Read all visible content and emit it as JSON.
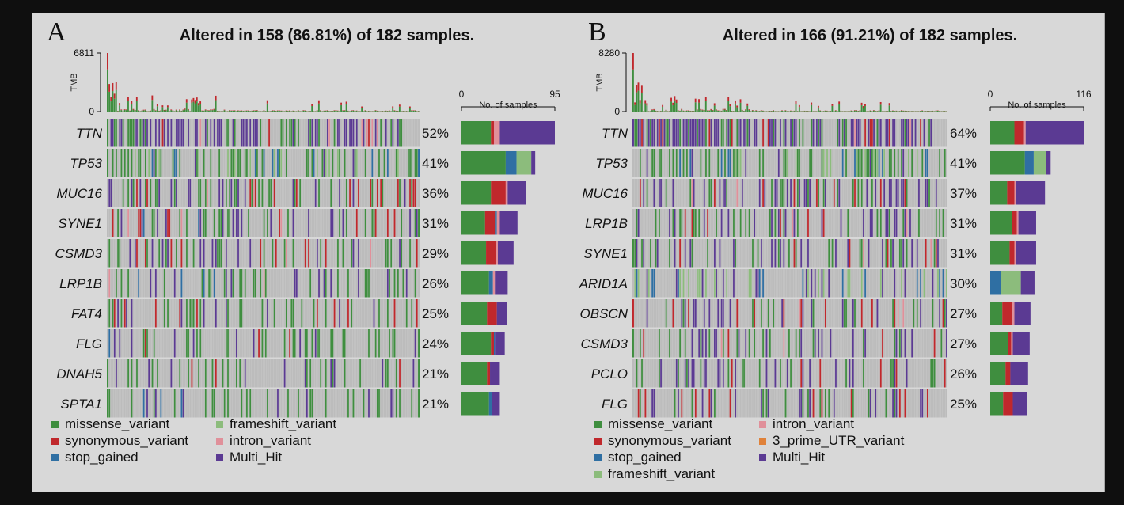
{
  "colors": {
    "missense_variant": "#3f8e3f",
    "synonymous_variant": "#c0282c",
    "stop_gained": "#2f6fa3",
    "frameshift_variant": "#8cbc7c",
    "intron_variant": "#e0909a",
    "3_prime_UTR_variant": "#e0823a",
    "Multi_Hit": "#5b3a93",
    "none": "#bcbcbc"
  },
  "chart_data": [
    {
      "type": "oncoplot",
      "panel": "A",
      "title": "Altered in 158 (86.81%) of 182 samples.",
      "n_samples": 182,
      "tmb": {
        "ylabel": "TMB",
        "max_label": "6811",
        "min_label": "0",
        "max": 6811
      },
      "side_bar": {
        "label": "No. of samples",
        "min_label": "0",
        "max_label": "95",
        "max": 95
      },
      "genes": [
        {
          "name": "TTN",
          "pct": "52%",
          "count": 95,
          "composition": {
            "missense_variant": 30,
            "synonymous_variant": 3,
            "intron_variant": 6,
            "Multi_Hit": 56
          }
        },
        {
          "name": "TP53",
          "pct": "41%",
          "count": 75,
          "composition": {
            "missense_variant": 45,
            "stop_gained": 11,
            "frameshift_variant": 15,
            "Multi_Hit": 4
          }
        },
        {
          "name": "MUC16",
          "pct": "36%",
          "count": 66,
          "composition": {
            "missense_variant": 30,
            "synonymous_variant": 15,
            "intron_variant": 2,
            "Multi_Hit": 19
          }
        },
        {
          "name": "SYNE1",
          "pct": "31%",
          "count": 57,
          "composition": {
            "missense_variant": 24,
            "synonymous_variant": 10,
            "stop_gained": 2,
            "intron_variant": 3,
            "Multi_Hit": 18
          }
        },
        {
          "name": "CSMD3",
          "pct": "29%",
          "count": 53,
          "composition": {
            "missense_variant": 25,
            "synonymous_variant": 10,
            "intron_variant": 2,
            "Multi_Hit": 16
          }
        },
        {
          "name": "LRP1B",
          "pct": "26%",
          "count": 47,
          "composition": {
            "missense_variant": 28,
            "stop_gained": 4,
            "intron_variant": 2,
            "Multi_Hit": 13
          }
        },
        {
          "name": "FAT4",
          "pct": "25%",
          "count": 46,
          "composition": {
            "missense_variant": 26,
            "synonymous_variant": 10,
            "Multi_Hit": 10
          }
        },
        {
          "name": "FLG",
          "pct": "24%",
          "count": 44,
          "composition": {
            "missense_variant": 30,
            "synonymous_variant": 3,
            "stop_gained": 1,
            "Multi_Hit": 10
          }
        },
        {
          "name": "DNAH5",
          "pct": "21%",
          "count": 39,
          "composition": {
            "missense_variant": 26,
            "synonymous_variant": 3,
            "Multi_Hit": 10
          }
        },
        {
          "name": "SPTA1",
          "pct": "21%",
          "count": 39,
          "composition": {
            "missense_variant": 28,
            "stop_gained": 3,
            "Multi_Hit": 8
          }
        }
      ],
      "legend": [
        {
          "key": "missense_variant",
          "label": "missense_variant"
        },
        {
          "key": "synonymous_variant",
          "label": "synonymous_variant"
        },
        {
          "key": "stop_gained",
          "label": "stop_gained"
        },
        {
          "key": "frameshift_variant",
          "label": "frameshift_variant"
        },
        {
          "key": "intron_variant",
          "label": "intron_variant"
        },
        {
          "key": "Multi_Hit",
          "label": "Multi_Hit"
        }
      ]
    },
    {
      "type": "oncoplot",
      "panel": "B",
      "title": "Altered in 166 (91.21%) of 182 samples.",
      "n_samples": 182,
      "tmb": {
        "ylabel": "TMB",
        "max_label": "8280",
        "min_label": "0",
        "max": 8280
      },
      "side_bar": {
        "label": "No. of samples",
        "min_label": "0",
        "max_label": "116",
        "max": 116
      },
      "genes": [
        {
          "name": "TTN",
          "pct": "64%",
          "count": 116,
          "composition": {
            "missense_variant": 30,
            "synonymous_variant": 12,
            "intron_variant": 2,
            "Multi_Hit": 72
          }
        },
        {
          "name": "TP53",
          "pct": "41%",
          "count": 75,
          "composition": {
            "missense_variant": 43,
            "stop_gained": 11,
            "frameshift_variant": 15,
            "Multi_Hit": 6
          }
        },
        {
          "name": "MUC16",
          "pct": "37%",
          "count": 68,
          "composition": {
            "missense_variant": 21,
            "synonymous_variant": 9,
            "intron_variant": 2,
            "Multi_Hit": 36
          }
        },
        {
          "name": "LRP1B",
          "pct": "31%",
          "count": 57,
          "composition": {
            "missense_variant": 27,
            "synonymous_variant": 6,
            "intron_variant": 2,
            "Multi_Hit": 22
          }
        },
        {
          "name": "SYNE1",
          "pct": "31%",
          "count": 57,
          "composition": {
            "missense_variant": 24,
            "synonymous_variant": 6,
            "intron_variant": 2,
            "Multi_Hit": 25
          }
        },
        {
          "name": "ARID1A",
          "pct": "30%",
          "count": 55,
          "composition": {
            "stop_gained": 13,
            "frameshift_variant": 25,
            "Multi_Hit": 17
          }
        },
        {
          "name": "OBSCN",
          "pct": "27%",
          "count": 50,
          "composition": {
            "missense_variant": 15,
            "synonymous_variant": 12,
            "intron_variant": 3,
            "Multi_Hit": 20
          }
        },
        {
          "name": "CSMD3",
          "pct": "27%",
          "count": 49,
          "composition": {
            "missense_variant": 22,
            "synonymous_variant": 4,
            "intron_variant": 2,
            "Multi_Hit": 21
          }
        },
        {
          "name": "PCLO",
          "pct": "26%",
          "count": 47,
          "composition": {
            "missense_variant": 19,
            "synonymous_variant": 6,
            "Multi_Hit": 22
          }
        },
        {
          "name": "FLG",
          "pct": "25%",
          "count": 46,
          "composition": {
            "missense_variant": 16,
            "synonymous_variant": 12,
            "Multi_Hit": 18
          }
        }
      ],
      "legend": [
        {
          "key": "missense_variant",
          "label": "missense_variant"
        },
        {
          "key": "synonymous_variant",
          "label": "synonymous_variant"
        },
        {
          "key": "stop_gained",
          "label": "stop_gained"
        },
        {
          "key": "frameshift_variant",
          "label": "frameshift_variant"
        },
        {
          "key": "intron_variant",
          "label": "intron_variant"
        },
        {
          "key": "3_prime_UTR_variant",
          "label": "3_prime_UTR_variant"
        },
        {
          "key": "Multi_Hit",
          "label": "Multi_Hit"
        }
      ]
    }
  ]
}
